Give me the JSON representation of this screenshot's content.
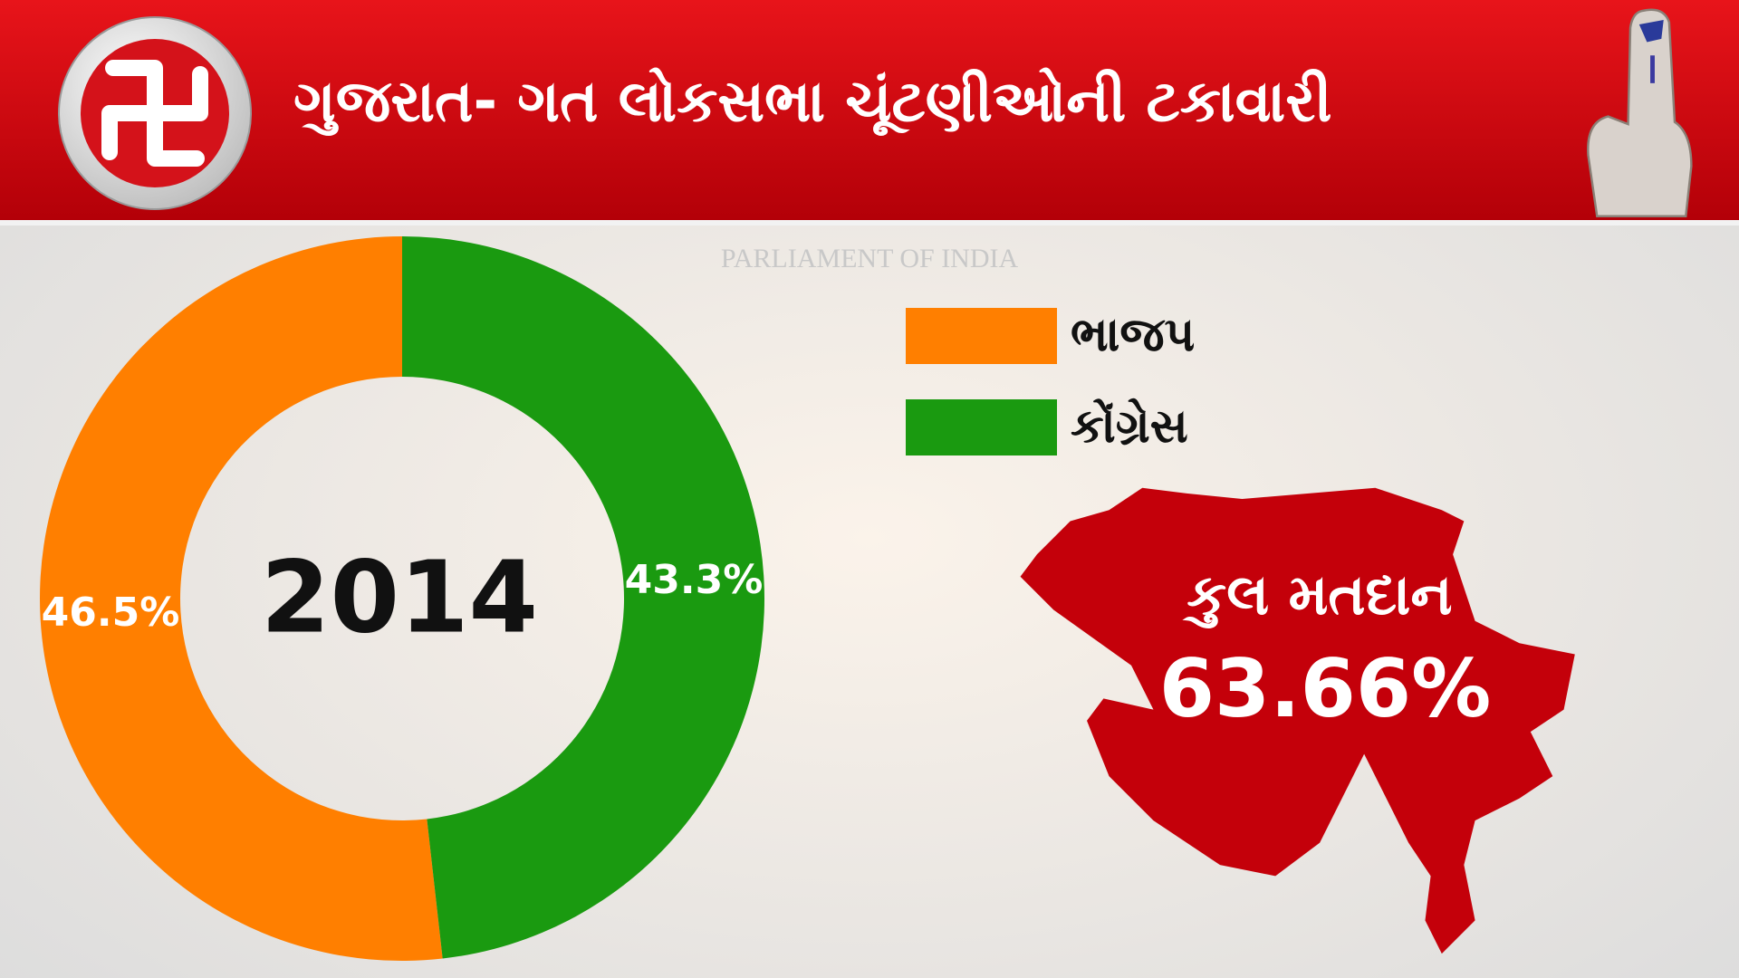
{
  "chart_data": {
    "type": "donut",
    "title": "ગુજરાત- ગત લોકસભા ચૂંટણીઓની ટકાવારી",
    "watermark": "PARLIAMENT OF INDIA",
    "center_label": "2014",
    "categories": [
      "ભાજપ",
      "કોંગ્રેસ"
    ],
    "values": [
      46.5,
      43.3
    ],
    "value_labels": [
      "46.5%",
      "43.3%"
    ],
    "colors": [
      "#ff7f00",
      "#1a9a10"
    ],
    "annotation": {
      "label": "કુલ મતદાન",
      "value": 63.66,
      "value_label": "63.66%"
    }
  }
}
